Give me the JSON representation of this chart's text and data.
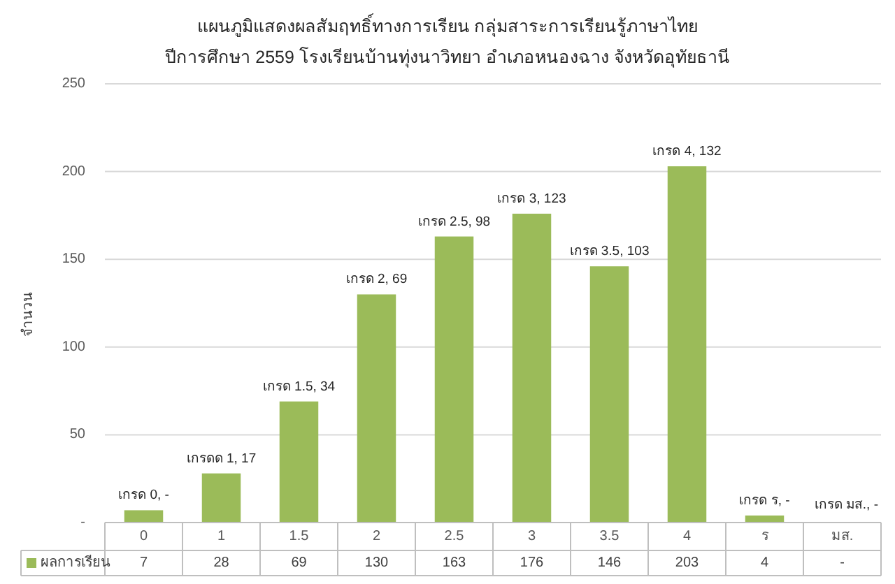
{
  "chart_data": {
    "type": "bar",
    "title": "แผนภูมิแสดงผลสัมฤทธิ์ทางการเรียน กลุ่มสาระการเรียนรู้ภาษาไทย\nปีการศึกษา 2559 โรงเรียนบ้านทุ่งนาวิทยา อำเภอหนองฉาง จังหวัดอุทัยธานี",
    "ylabel": "จำนวน",
    "categories": [
      "0",
      "1",
      "1.5",
      "2",
      "2.5",
      "3",
      "3.5",
      "4",
      "ร",
      "มส."
    ],
    "series": [
      {
        "name": "ผลการเรียน",
        "color": "#9bbb59",
        "values": [
          7,
          28,
          69,
          130,
          163,
          176,
          146,
          203,
          4,
          null
        ],
        "value_labels": [
          "7",
          "28",
          "69",
          "130",
          "163",
          "176",
          "146",
          "203",
          "4",
          "-"
        ]
      }
    ],
    "ylim": [
      0,
      250
    ],
    "yticks": [
      {
        "value": 0,
        "label": "-"
      },
      50,
      100,
      150,
      200,
      250
    ],
    "grid": "y",
    "legend": "bottom",
    "annotations": [
      {
        "text": "เกรด 0, -",
        "x": "0",
        "y": 7
      },
      {
        "text": "เกรดด 1, 17",
        "x": "1",
        "y": 28
      },
      {
        "text": "เกรด 1.5, 34",
        "x": "1.5",
        "y": 69
      },
      {
        "text": "เกรด 2, 69",
        "x": "2",
        "y": 130
      },
      {
        "text": "เกรด 2.5, 98",
        "x": "2.5",
        "y": 163
      },
      {
        "text": "เกรด 3, 123",
        "x": "3",
        "y": 176
      },
      {
        "text": "เกรด 3.5, 103",
        "x": "3.5",
        "y": 146
      },
      {
        "text": "เกรด 4, 132",
        "x": "4",
        "y": 203
      },
      {
        "text": "เกรด ร, -",
        "x": "ร",
        "y": 4
      },
      "เกรด มส., -"
    ]
  }
}
